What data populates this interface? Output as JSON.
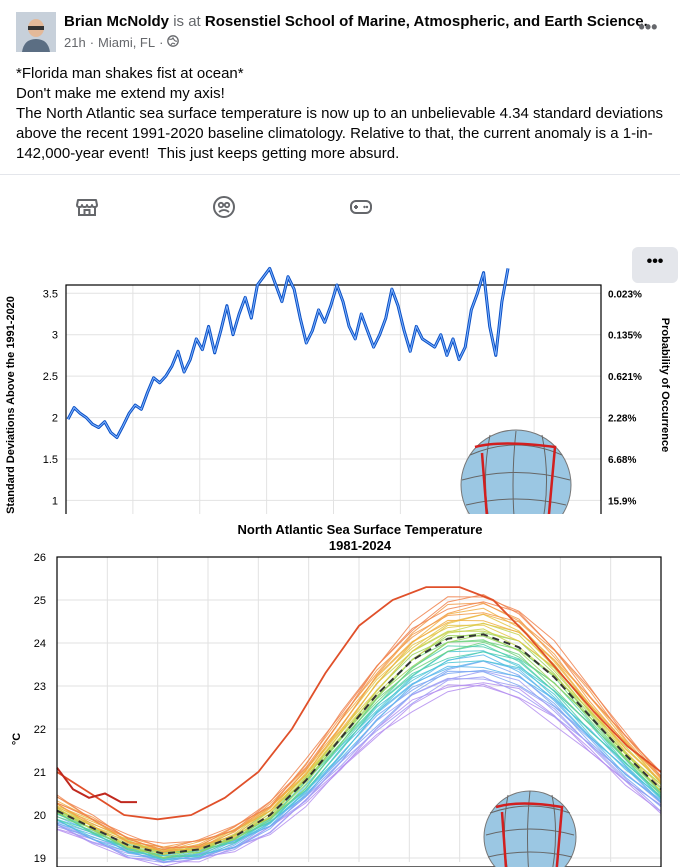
{
  "post": {
    "author": "Brian McNoldy",
    "verb": "is at",
    "place": "Rosenstiel School of Marine, Atmospheric, and Earth Science.",
    "time": "21h",
    "location": "Miami, FL",
    "separator": "·",
    "text_lines": [
      "*Florida man shakes fist at ocean*",
      "Don't make me extend my axis!",
      "The North Atlantic sea surface temperature is now up to an unbelievable 4.34 standard deviations above the recent 1991-2020 baseline climatology. Relative to that, the current anomaly is a 1-in-142,000-year event!  This just keeps getting more absurd."
    ]
  },
  "icons": [
    "globe-icon",
    "store-icon",
    "face-icon",
    "gamepad-icon",
    "more-icon"
  ],
  "chart_data": [
    {
      "type": "line",
      "ylabel": "Standard Deviations Above the 1991-2020",
      "y2label": "Probability of Occurrence",
      "y_ticks": [
        "1",
        "1.5",
        "2",
        "2.5",
        "3",
        "3.5"
      ],
      "y2_ticks": [
        "15.9%",
        "6.68%",
        "2.28%",
        "0.621%",
        "0.135%",
        "0.023%"
      ],
      "ylim": [
        0.8,
        3.6
      ],
      "color": "#0a4fc4",
      "series": [
        {
          "values": [
            1.98,
            2.12,
            2.05,
            2.0,
            1.92,
            1.88,
            1.95,
            1.82,
            1.76,
            1.9,
            2.05,
            2.15,
            2.1,
            2.3,
            2.48,
            2.42,
            2.5,
            2.62,
            2.8,
            2.55,
            2.7,
            2.95,
            2.82,
            3.1,
            2.78,
            3.05,
            3.35,
            3.0,
            3.25,
            3.45,
            3.2,
            3.6,
            3.7,
            3.8,
            3.6,
            3.4,
            3.7,
            3.55,
            3.2,
            2.9,
            3.05,
            3.3,
            3.15,
            3.35,
            3.6,
            3.4,
            3.1,
            2.95,
            3.25,
            3.05,
            2.85,
            3.0,
            3.2,
            3.55,
            3.35,
            3.05,
            2.8,
            3.1,
            2.95,
            2.9,
            2.85,
            3.0,
            2.75,
            2.95,
            2.7,
            2.85,
            3.3,
            3.5,
            3.75,
            3.1,
            2.75,
            3.4,
            3.8
          ]
        }
      ]
    },
    {
      "type": "line",
      "title": "North Atlantic Sea Surface Temperature",
      "subtitle": "1981-2024",
      "ylabel": "°C",
      "y_ticks": [
        "19",
        "20",
        "21",
        "22",
        "23",
        "24",
        "25",
        "26"
      ],
      "ylim": [
        19,
        26
      ],
      "mean_line": [
        20.1,
        19.7,
        19.3,
        19.1,
        19.2,
        19.5,
        20.0,
        20.8,
        21.8,
        22.8,
        23.6,
        24.1,
        24.2,
        23.9,
        23.2,
        22.3,
        21.4,
        20.6
      ],
      "year_2023": [
        21.0,
        20.5,
        20.0,
        19.9,
        20.0,
        20.4,
        21.0,
        22.0,
        23.3,
        24.4,
        25.0,
        25.3,
        25.3,
        25.0,
        24.2,
        23.3,
        22.4,
        21.6,
        21.0
      ],
      "year_2024": [
        21.1,
        20.6,
        20.4,
        20.5,
        20.3,
        20.3
      ],
      "climo_band": {
        "low_offset": -0.7,
        "high_offset": 0.6
      }
    }
  ]
}
